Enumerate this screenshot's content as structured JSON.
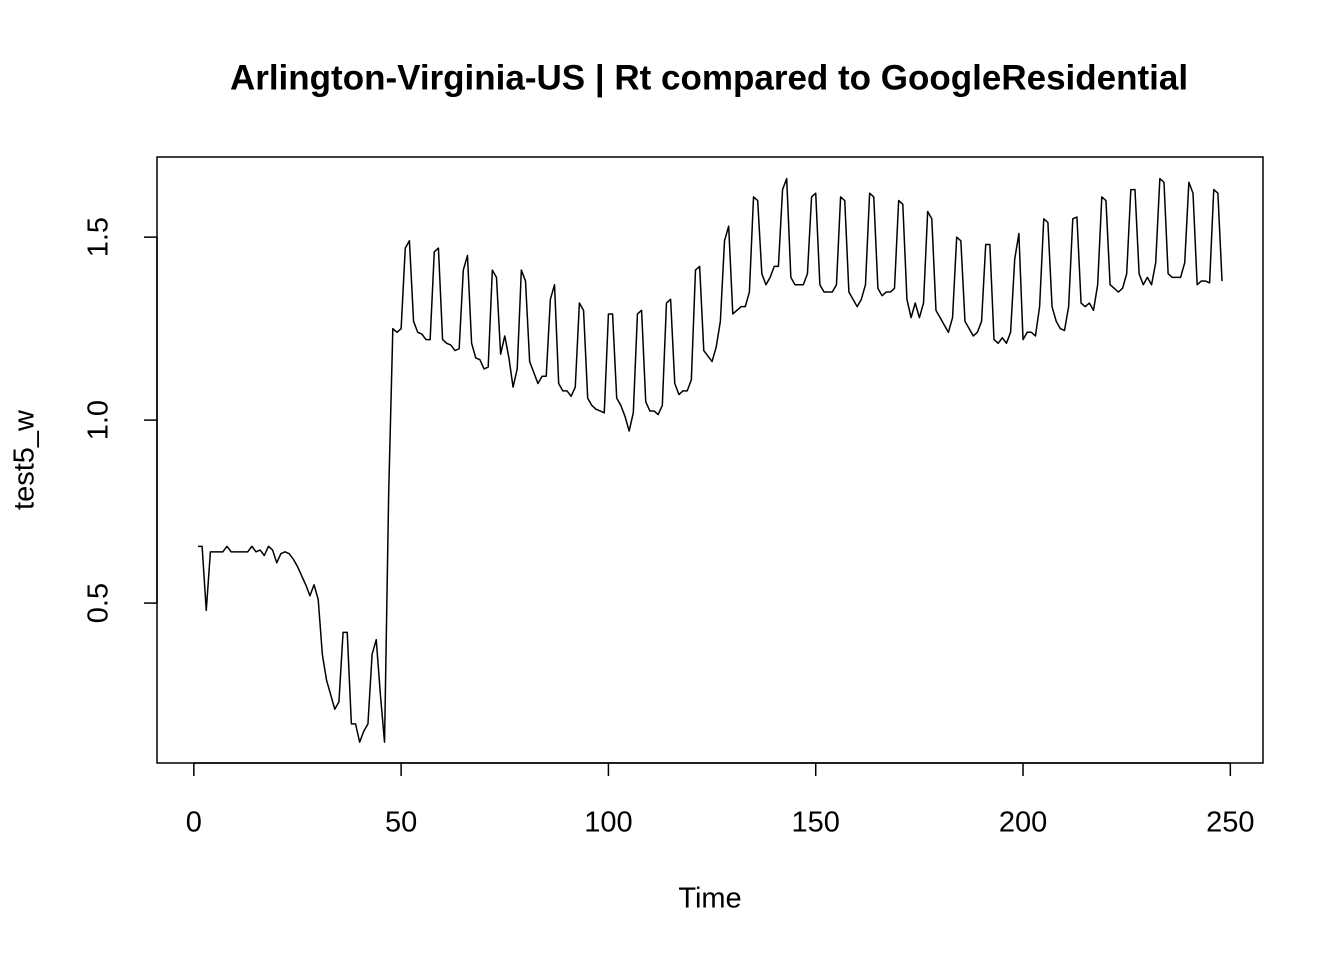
{
  "chart_data": {
    "type": "line",
    "title": "Arlington-Virginia-US | Rt compared to GoogleResidential",
    "x_label": "Time",
    "y_label": "test5_w",
    "x": [
      1,
      2,
      3,
      4,
      5,
      6,
      7,
      8,
      9,
      10,
      11,
      12,
      13,
      14,
      15,
      16,
      17,
      18,
      19,
      20,
      21,
      22,
      23,
      24,
      25,
      26,
      27,
      28,
      29,
      30,
      31,
      32,
      33,
      34,
      35,
      36,
      37,
      38,
      39,
      40,
      41,
      42,
      43,
      44,
      45,
      46,
      47,
      48,
      49,
      50,
      51,
      52,
      53,
      54,
      55,
      56,
      57,
      58,
      59,
      60,
      61,
      62,
      63,
      64,
      65,
      66,
      67,
      68,
      69,
      70,
      71,
      72,
      73,
      74,
      75,
      76,
      77,
      78,
      79,
      80,
      81,
      82,
      83,
      84,
      85,
      86,
      87,
      88,
      89,
      90,
      91,
      92,
      93,
      94,
      95,
      96,
      97,
      98,
      99,
      100,
      101,
      102,
      103,
      104,
      105,
      106,
      107,
      108,
      109,
      110,
      111,
      112,
      113,
      114,
      115,
      116,
      117,
      118,
      119,
      120,
      121,
      122,
      123,
      124,
      125,
      126,
      127,
      128,
      129,
      130,
      131,
      132,
      133,
      134,
      135,
      136,
      137,
      138,
      139,
      140,
      141,
      142,
      143,
      144,
      145,
      146,
      147,
      148,
      149,
      150,
      151,
      152,
      153,
      154,
      155,
      156,
      157,
      158,
      159,
      160,
      161,
      162,
      163,
      164,
      165,
      166,
      167,
      168,
      169,
      170,
      171,
      172,
      173,
      174,
      175,
      176,
      177,
      178,
      179,
      180,
      181,
      182,
      183,
      184,
      185,
      186,
      187,
      188,
      189,
      190,
      191,
      192,
      193,
      194,
      195,
      196,
      197,
      198,
      199,
      200,
      201,
      202,
      203,
      204,
      205,
      206,
      207,
      208,
      209,
      210,
      211,
      212,
      213,
      214,
      215,
      216,
      217,
      218,
      219,
      220,
      221,
      222,
      223,
      224,
      225,
      226,
      227,
      228,
      229,
      230,
      231,
      232,
      233,
      234,
      235,
      236,
      237,
      238,
      239,
      240,
      241,
      242,
      243,
      244,
      245,
      246,
      247,
      248
    ],
    "values": [
      0.655,
      0.655,
      0.48,
      0.64,
      0.64,
      0.64,
      0.64,
      0.655,
      0.64,
      0.64,
      0.64,
      0.64,
      0.64,
      0.655,
      0.64,
      0.645,
      0.63,
      0.655,
      0.645,
      0.61,
      0.635,
      0.64,
      0.635,
      0.62,
      0.6,
      0.575,
      0.55,
      0.52,
      0.55,
      0.51,
      0.36,
      0.29,
      0.25,
      0.21,
      0.23,
      0.42,
      0.42,
      0.17,
      0.17,
      0.12,
      0.15,
      0.17,
      0.36,
      0.4,
      0.25,
      0.12,
      0.8,
      1.25,
      1.24,
      1.25,
      1.47,
      1.49,
      1.27,
      1.24,
      1.235,
      1.22,
      1.22,
      1.46,
      1.47,
      1.22,
      1.21,
      1.205,
      1.19,
      1.195,
      1.41,
      1.45,
      1.21,
      1.17,
      1.165,
      1.14,
      1.145,
      1.41,
      1.39,
      1.18,
      1.23,
      1.17,
      1.09,
      1.14,
      1.41,
      1.38,
      1.16,
      1.13,
      1.1,
      1.12,
      1.12,
      1.33,
      1.37,
      1.1,
      1.08,
      1.08,
      1.065,
      1.09,
      1.32,
      1.3,
      1.06,
      1.04,
      1.03,
      1.025,
      1.02,
      1.29,
      1.29,
      1.06,
      1.04,
      1.01,
      0.97,
      1.02,
      1.29,
      1.3,
      1.05,
      1.025,
      1.025,
      1.015,
      1.04,
      1.32,
      1.33,
      1.1,
      1.07,
      1.08,
      1.08,
      1.11,
      1.41,
      1.42,
      1.19,
      1.175,
      1.16,
      1.2,
      1.27,
      1.49,
      1.53,
      1.29,
      1.3,
      1.31,
      1.31,
      1.35,
      1.61,
      1.6,
      1.4,
      1.37,
      1.39,
      1.42,
      1.42,
      1.63,
      1.66,
      1.39,
      1.37,
      1.37,
      1.37,
      1.4,
      1.61,
      1.62,
      1.37,
      1.35,
      1.35,
      1.35,
      1.37,
      1.61,
      1.6,
      1.35,
      1.33,
      1.31,
      1.33,
      1.37,
      1.62,
      1.61,
      1.36,
      1.34,
      1.35,
      1.35,
      1.36,
      1.6,
      1.59,
      1.33,
      1.28,
      1.32,
      1.28,
      1.32,
      1.57,
      1.55,
      1.3,
      1.28,
      1.26,
      1.24,
      1.28,
      1.5,
      1.49,
      1.27,
      1.25,
      1.23,
      1.24,
      1.27,
      1.48,
      1.48,
      1.22,
      1.21,
      1.225,
      1.21,
      1.24,
      1.44,
      1.51,
      1.22,
      1.24,
      1.24,
      1.23,
      1.31,
      1.55,
      1.54,
      1.31,
      1.27,
      1.25,
      1.245,
      1.31,
      1.55,
      1.555,
      1.32,
      1.31,
      1.32,
      1.3,
      1.37,
      1.61,
      1.6,
      1.37,
      1.36,
      1.35,
      1.36,
      1.4,
      1.63,
      1.63,
      1.4,
      1.37,
      1.39,
      1.37,
      1.43,
      1.66,
      1.65,
      1.4,
      1.39,
      1.39,
      1.39,
      1.43,
      1.65,
      1.62,
      1.37,
      1.38,
      1.38,
      1.375,
      1.63,
      1.62,
      1.38
    ],
    "color": "#000000",
    "xlim": [
      -8.88,
      257.88
    ],
    "ylim": [
      0.063,
      1.719
    ],
    "xticks": [
      0,
      50,
      100,
      150,
      200,
      250
    ],
    "yticks": [
      0.5,
      {
        "value": 1,
        "label": "1.0"
      },
      1.5
    ],
    "grid": false
  }
}
